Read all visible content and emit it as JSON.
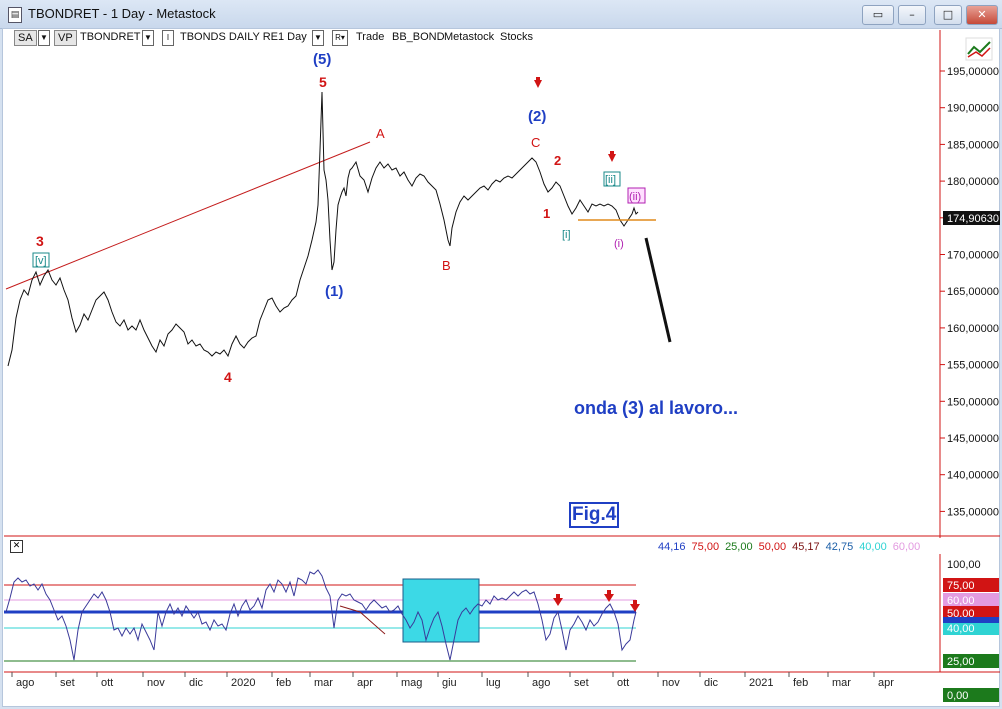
{
  "window": {
    "title": "TBONDRET - 1 Day - Metastock",
    "controls": [
      "layout",
      "minimize",
      "maximize",
      "close"
    ]
  },
  "toolbar": {
    "sa": "SA",
    "vp": "VP",
    "symbol": "TBONDRET",
    "i_label": "I",
    "chart_name": "TBONDS DAILY RE",
    "period": "1 Day",
    "r_label": "R",
    "trade": "Trade",
    "link": "BB_BOND",
    "source": "Metastock",
    "type": "Stocks"
  },
  "price_axis": {
    "ticks": [
      "195,00000",
      "190,00000",
      "185,00000",
      "180,00000",
      "175,00000",
      "170,00000",
      "165,00000",
      "160,00000",
      "155,00000",
      "150,00000",
      "145,00000",
      "140,00000",
      "135,00000"
    ],
    "last_price": "174,90630"
  },
  "oscillator_axis": {
    "ticks": [
      "100,00",
      "75,00",
      "60,00",
      "50,00",
      "40,00",
      "25,00",
      "0,00"
    ]
  },
  "legend_values": [
    {
      "text": "44,16",
      "color": "#1f3fc4"
    },
    {
      "text": "75,00",
      "color": "#d11414"
    },
    {
      "text": "25,00",
      "color": "#1c7a1c"
    },
    {
      "text": "50,00",
      "color": "#d11414"
    },
    {
      "text": "45,17",
      "color": "#7a1010"
    },
    {
      "text": "42,75",
      "color": "#1c5fa8"
    },
    {
      "text": "40,00",
      "color": "#2fd3d3"
    },
    {
      "text": "60,00",
      "color": "#e39be0"
    }
  ],
  "months": [
    "ago",
    "set",
    "ott",
    "nov",
    "dic",
    "2020",
    "feb",
    "mar",
    "apr",
    "mag",
    "giu",
    "lug",
    "ago",
    "set",
    "ott",
    "nov",
    "dic",
    "2021",
    "feb",
    "mar",
    "apr"
  ],
  "wave_labels": {
    "w5_paren": "(5)",
    "w5": "5",
    "A": "A",
    "w2_paren": "(2)",
    "C": "C",
    "w2": "2",
    "w1": "1",
    "ii_box": "[ii]",
    "ii_paren": "(ii)",
    "i_box": "[i]",
    "i_paren": "(i)",
    "B": "B",
    "w1_paren": "(1)",
    "w3": "3",
    "v_box": "[v]",
    "w4": "4"
  },
  "annotation": "onda (3) al lavoro...",
  "figure_label": "Fig.4",
  "colors": {
    "accent": "#1f3fc4",
    "red": "#d11414",
    "teal": "#1a8a8a",
    "magenta": "#b020b0",
    "cyan": "#3cd9e6"
  }
}
